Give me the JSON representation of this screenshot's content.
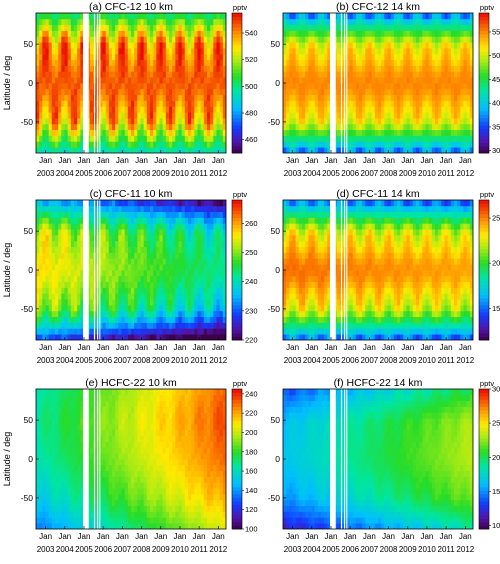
{
  "figure": {
    "x_tick_month_label": "Jan",
    "year_labels": [
      "2003",
      "2004",
      "2005",
      "2006",
      "2007",
      "2008",
      "2009",
      "2010",
      "2011",
      "2012"
    ]
  },
  "chart_data": [
    {
      "id": "a",
      "type": "heatmap",
      "title": "(a) CFC-12 10 km",
      "unit": "pptv",
      "ylabel": "Latitude / deg",
      "yticks": [
        50,
        0,
        -50
      ],
      "ylim": [
        -90,
        90
      ],
      "xlim": [
        2002.5,
        2012.4
      ],
      "colorbar": {
        "min": 450,
        "max": 555,
        "ticks": [
          460,
          480,
          500,
          520,
          540
        ]
      },
      "data_gaps": [
        [
          2004.95,
          2005.25
        ],
        [
          2005.52,
          2005.58
        ],
        [
          2005.68,
          2005.74
        ],
        [
          2005.8,
          2005.85
        ]
      ],
      "field": {
        "base": 538,
        "lat_gradient": 0.05,
        "trend": 0,
        "seasonal_amp": 20,
        "hemispheric_seasonal": true,
        "tropical_boost": 8,
        "polar_depletion": 60,
        "noise": 3
      }
    },
    {
      "id": "b",
      "type": "heatmap",
      "title": "(b) CFC-12 14 km",
      "unit": "pptv",
      "ylabel": "",
      "yticks": [
        50,
        0,
        -50
      ],
      "ylim": [
        -90,
        90
      ],
      "xlim": [
        2002.5,
        2012.4
      ],
      "colorbar": {
        "min": 295,
        "max": 590,
        "ticks": [
          300,
          350,
          400,
          450,
          500,
          550
        ]
      },
      "data_gaps": [
        [
          2004.95,
          2005.25
        ],
        [
          2005.52,
          2005.58
        ],
        [
          2005.68,
          2005.74
        ],
        [
          2005.8,
          2005.85
        ]
      ],
      "field": {
        "base": 510,
        "lat_gradient": 0,
        "trend": 0,
        "seasonal_amp": 30,
        "hemispheric_seasonal": true,
        "tropical_boost": 40,
        "polar_depletion": 210,
        "noise": 3
      }
    },
    {
      "id": "c",
      "type": "heatmap",
      "title": "(c) CFC-11 10 km",
      "unit": "pptv",
      "ylabel": "Latitude / deg",
      "yticks": [
        50,
        0,
        -50
      ],
      "ylim": [
        -90,
        90
      ],
      "xlim": [
        2002.5,
        2012.4
      ],
      "colorbar": {
        "min": 220,
        "max": 268,
        "ticks": [
          220,
          230,
          240,
          250,
          260
        ]
      },
      "data_gaps": [
        [
          2004.95,
          2005.25
        ],
        [
          2005.52,
          2005.58
        ],
        [
          2005.68,
          2005.74
        ],
        [
          2005.8,
          2005.85
        ]
      ],
      "field": {
        "base": 252,
        "lat_gradient": 0.03,
        "trend": -1.5,
        "seasonal_amp": 6,
        "hemispheric_seasonal": true,
        "tropical_boost": 4,
        "polar_depletion": 30,
        "noise": 1.5
      }
    },
    {
      "id": "d",
      "type": "heatmap",
      "title": "(d) CFC-11 14 km",
      "unit": "pptv",
      "ylabel": "",
      "yticks": [
        50,
        0,
        -50
      ],
      "ylim": [
        -90,
        90
      ],
      "xlim": [
        2002.5,
        2012.4
      ],
      "colorbar": {
        "min": 115,
        "max": 270,
        "ticks": [
          150,
          200,
          250
        ]
      },
      "data_gaps": [
        [
          2004.95,
          2005.25
        ],
        [
          2005.52,
          2005.58
        ],
        [
          2005.68,
          2005.74
        ],
        [
          2005.8,
          2005.85
        ]
      ],
      "field": {
        "base": 228,
        "lat_gradient": 0,
        "trend": -1,
        "seasonal_amp": 18,
        "hemispheric_seasonal": true,
        "tropical_boost": 25,
        "polar_depletion": 110,
        "noise": 2
      }
    },
    {
      "id": "e",
      "type": "heatmap",
      "title": "(e) HCFC-22 10 km",
      "unit": "pptv",
      "ylabel": "Latitude / deg",
      "yticks": [
        50,
        0,
        -50
      ],
      "ylim": [
        -90,
        90
      ],
      "xlim": [
        2002.5,
        2012.4
      ],
      "colorbar": {
        "min": 100,
        "max": 245,
        "ticks": [
          100,
          120,
          140,
          160,
          180,
          200,
          220,
          240
        ]
      },
      "data_gaps": [
        [
          2004.95,
          2005.25
        ],
        [
          2005.52,
          2005.58
        ],
        [
          2005.68,
          2005.74
        ],
        [
          2005.8,
          2005.85
        ]
      ],
      "field": {
        "base": 162,
        "lat_gradient": 0.15,
        "trend": 7,
        "seasonal_amp": 5,
        "hemispheric_seasonal": true,
        "tropical_boost": 3,
        "polar_depletion": 15,
        "noise": 2
      }
    },
    {
      "id": "f",
      "type": "heatmap",
      "title": "(f) HCFC-22 14 km",
      "unit": "pptv",
      "ylabel": "",
      "yticks": [
        50,
        0,
        -50
      ],
      "ylim": [
        -90,
        90
      ],
      "xlim": [
        2002.5,
        2012.4
      ],
      "colorbar": {
        "min": 95,
        "max": 300,
        "ticks": [
          100,
          150,
          200,
          250,
          300
        ]
      },
      "data_gaps": [
        [
          2004.95,
          2005.25
        ],
        [
          2005.52,
          2005.58
        ],
        [
          2005.68,
          2005.74
        ],
        [
          2005.8,
          2005.85
        ]
      ],
      "field": {
        "base": 160,
        "lat_gradient": 0.1,
        "trend": 7,
        "seasonal_amp": 6,
        "hemispheric_seasonal": true,
        "tropical_boost": 8,
        "polar_depletion": 45,
        "noise": 2
      }
    }
  ]
}
